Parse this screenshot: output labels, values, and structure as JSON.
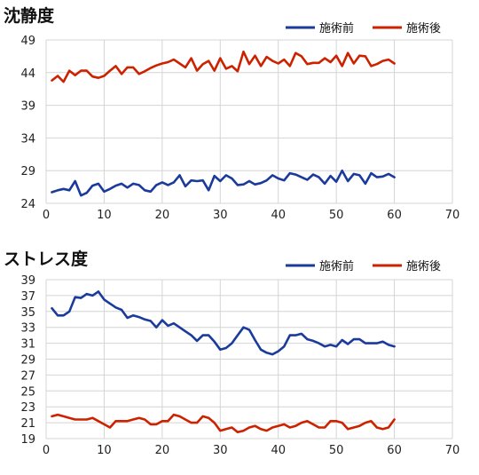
{
  "colors": {
    "before": "#1a3a9c",
    "after": "#cc2200",
    "grid": "#d4d4d4"
  },
  "chart_data": [
    {
      "type": "line",
      "title": "沈静度",
      "xlim": [
        0,
        70
      ],
      "xticks": [
        0,
        10,
        20,
        30,
        40,
        50,
        60,
        70
      ],
      "ylim": [
        24,
        49
      ],
      "yticks": [
        24,
        29,
        34,
        39,
        44,
        49
      ],
      "grid": true,
      "legend_position": "top-right",
      "series": [
        {
          "name": "施術前",
          "color": "#1a3a9c",
          "x": [
            1,
            2,
            3,
            4,
            5,
            6,
            7,
            8,
            9,
            10,
            11,
            12,
            13,
            14,
            15,
            16,
            17,
            18,
            19,
            20,
            21,
            22,
            23,
            24,
            25,
            26,
            27,
            28,
            29,
            30,
            31,
            32,
            33,
            34,
            35,
            36,
            37,
            38,
            39,
            40,
            41,
            42,
            43,
            44,
            45,
            46,
            47,
            48,
            49,
            50,
            51,
            52,
            53,
            54,
            55,
            56,
            57,
            58,
            59,
            60
          ],
          "values": [
            25.7,
            26.0,
            26.2,
            26.0,
            27.4,
            25.2,
            25.6,
            26.7,
            27.0,
            25.8,
            26.2,
            26.7,
            27.0,
            26.4,
            27.0,
            26.8,
            26.0,
            25.8,
            26.8,
            27.2,
            26.8,
            27.2,
            28.3,
            26.6,
            27.5,
            27.4,
            27.5,
            26.0,
            28.2,
            27.4,
            28.3,
            27.8,
            26.8,
            26.9,
            27.4,
            26.9,
            27.1,
            27.5,
            28.3,
            27.8,
            27.5,
            28.6,
            28.4,
            28.0,
            27.6,
            28.4,
            28.0,
            27.0,
            28.2,
            27.3,
            29.0,
            27.4,
            28.5,
            28.3,
            27.0,
            28.6,
            28.0,
            28.1,
            28.5,
            28.0
          ]
        },
        {
          "name": "施術後",
          "color": "#cc2200",
          "x": [
            1,
            2,
            3,
            4,
            5,
            6,
            7,
            8,
            9,
            10,
            11,
            12,
            13,
            14,
            15,
            16,
            17,
            18,
            19,
            20,
            21,
            22,
            23,
            24,
            25,
            26,
            27,
            28,
            29,
            30,
            31,
            32,
            33,
            34,
            35,
            36,
            37,
            38,
            39,
            40,
            41,
            42,
            43,
            44,
            45,
            46,
            47,
            48,
            49,
            50,
            51,
            52,
            53,
            54,
            55,
            56,
            57,
            58,
            59,
            60
          ],
          "values": [
            42.8,
            43.5,
            42.6,
            44.3,
            43.6,
            44.3,
            44.3,
            43.4,
            43.2,
            43.5,
            44.3,
            45.0,
            43.8,
            44.8,
            44.8,
            43.8,
            44.2,
            44.7,
            45.1,
            45.4,
            45.6,
            46.0,
            45.4,
            44.8,
            46.2,
            44.3,
            45.3,
            45.8,
            44.3,
            46.2,
            44.6,
            45.0,
            44.2,
            47.2,
            45.3,
            46.6,
            45.0,
            46.4,
            45.8,
            45.4,
            46.0,
            45.0,
            47.0,
            46.5,
            45.3,
            45.5,
            45.5,
            46.2,
            45.6,
            46.6,
            45.0,
            47.0,
            45.4,
            46.6,
            46.5,
            45.0,
            45.3,
            45.8,
            46.0,
            45.4
          ]
        }
      ]
    },
    {
      "type": "line",
      "title": "ストレス度",
      "xlim": [
        0,
        70
      ],
      "xticks": [
        0,
        10,
        20,
        30,
        40,
        50,
        60,
        70
      ],
      "ylim": [
        19,
        39
      ],
      "yticks": [
        19,
        21,
        23,
        25,
        27,
        29,
        31,
        33,
        35,
        37,
        39
      ],
      "grid": true,
      "legend_position": "top-right",
      "series": [
        {
          "name": "施術前",
          "color": "#1a3a9c",
          "x": [
            1,
            2,
            3,
            4,
            5,
            6,
            7,
            8,
            9,
            10,
            11,
            12,
            13,
            14,
            15,
            16,
            17,
            18,
            19,
            20,
            21,
            22,
            23,
            24,
            25,
            26,
            27,
            28,
            29,
            30,
            31,
            32,
            33,
            34,
            35,
            36,
            37,
            38,
            39,
            40,
            41,
            42,
            43,
            44,
            45,
            46,
            47,
            48,
            49,
            50,
            51,
            52,
            53,
            54,
            55,
            56,
            57,
            58,
            59,
            60
          ],
          "values": [
            35.4,
            34.5,
            34.5,
            35.0,
            36.8,
            36.7,
            37.2,
            37.0,
            37.5,
            36.5,
            36.0,
            35.5,
            35.2,
            34.2,
            34.5,
            34.3,
            34.0,
            33.8,
            33.0,
            33.9,
            33.2,
            33.5,
            33.0,
            32.5,
            32.0,
            31.3,
            32.0,
            32.0,
            31.2,
            30.2,
            30.4,
            31.0,
            32.0,
            33.0,
            32.7,
            31.4,
            30.2,
            29.8,
            29.6,
            30.0,
            30.6,
            32.0,
            32.0,
            32.2,
            31.5,
            31.3,
            31.0,
            30.6,
            30.8,
            30.6,
            31.4,
            30.9,
            31.5,
            31.5,
            31.0,
            31.0,
            31.0,
            31.2,
            30.8,
            30.6
          ]
        },
        {
          "name": "施術後",
          "color": "#cc2200",
          "x": [
            1,
            2,
            3,
            4,
            5,
            6,
            7,
            8,
            9,
            10,
            11,
            12,
            13,
            14,
            15,
            16,
            17,
            18,
            19,
            20,
            21,
            22,
            23,
            24,
            25,
            26,
            27,
            28,
            29,
            30,
            31,
            32,
            33,
            34,
            35,
            36,
            37,
            38,
            39,
            40,
            41,
            42,
            43,
            44,
            45,
            46,
            47,
            48,
            49,
            50,
            51,
            52,
            53,
            54,
            55,
            56,
            57,
            58,
            59,
            60
          ],
          "values": [
            21.8,
            22.0,
            21.8,
            21.6,
            21.4,
            21.4,
            21.4,
            21.6,
            21.2,
            20.8,
            20.4,
            21.2,
            21.2,
            21.2,
            21.4,
            21.6,
            21.4,
            20.8,
            20.8,
            21.2,
            21.2,
            22.0,
            21.8,
            21.4,
            21.0,
            21.0,
            21.8,
            21.6,
            21.0,
            20.0,
            20.2,
            20.4,
            19.8,
            20.0,
            20.4,
            20.6,
            20.2,
            20.0,
            20.4,
            20.6,
            20.8,
            20.4,
            20.6,
            21.0,
            21.2,
            20.8,
            20.4,
            20.4,
            21.2,
            21.2,
            21.0,
            20.2,
            20.4,
            20.6,
            21.0,
            21.2,
            20.4,
            20.2,
            20.4,
            21.4
          ]
        }
      ]
    }
  ]
}
